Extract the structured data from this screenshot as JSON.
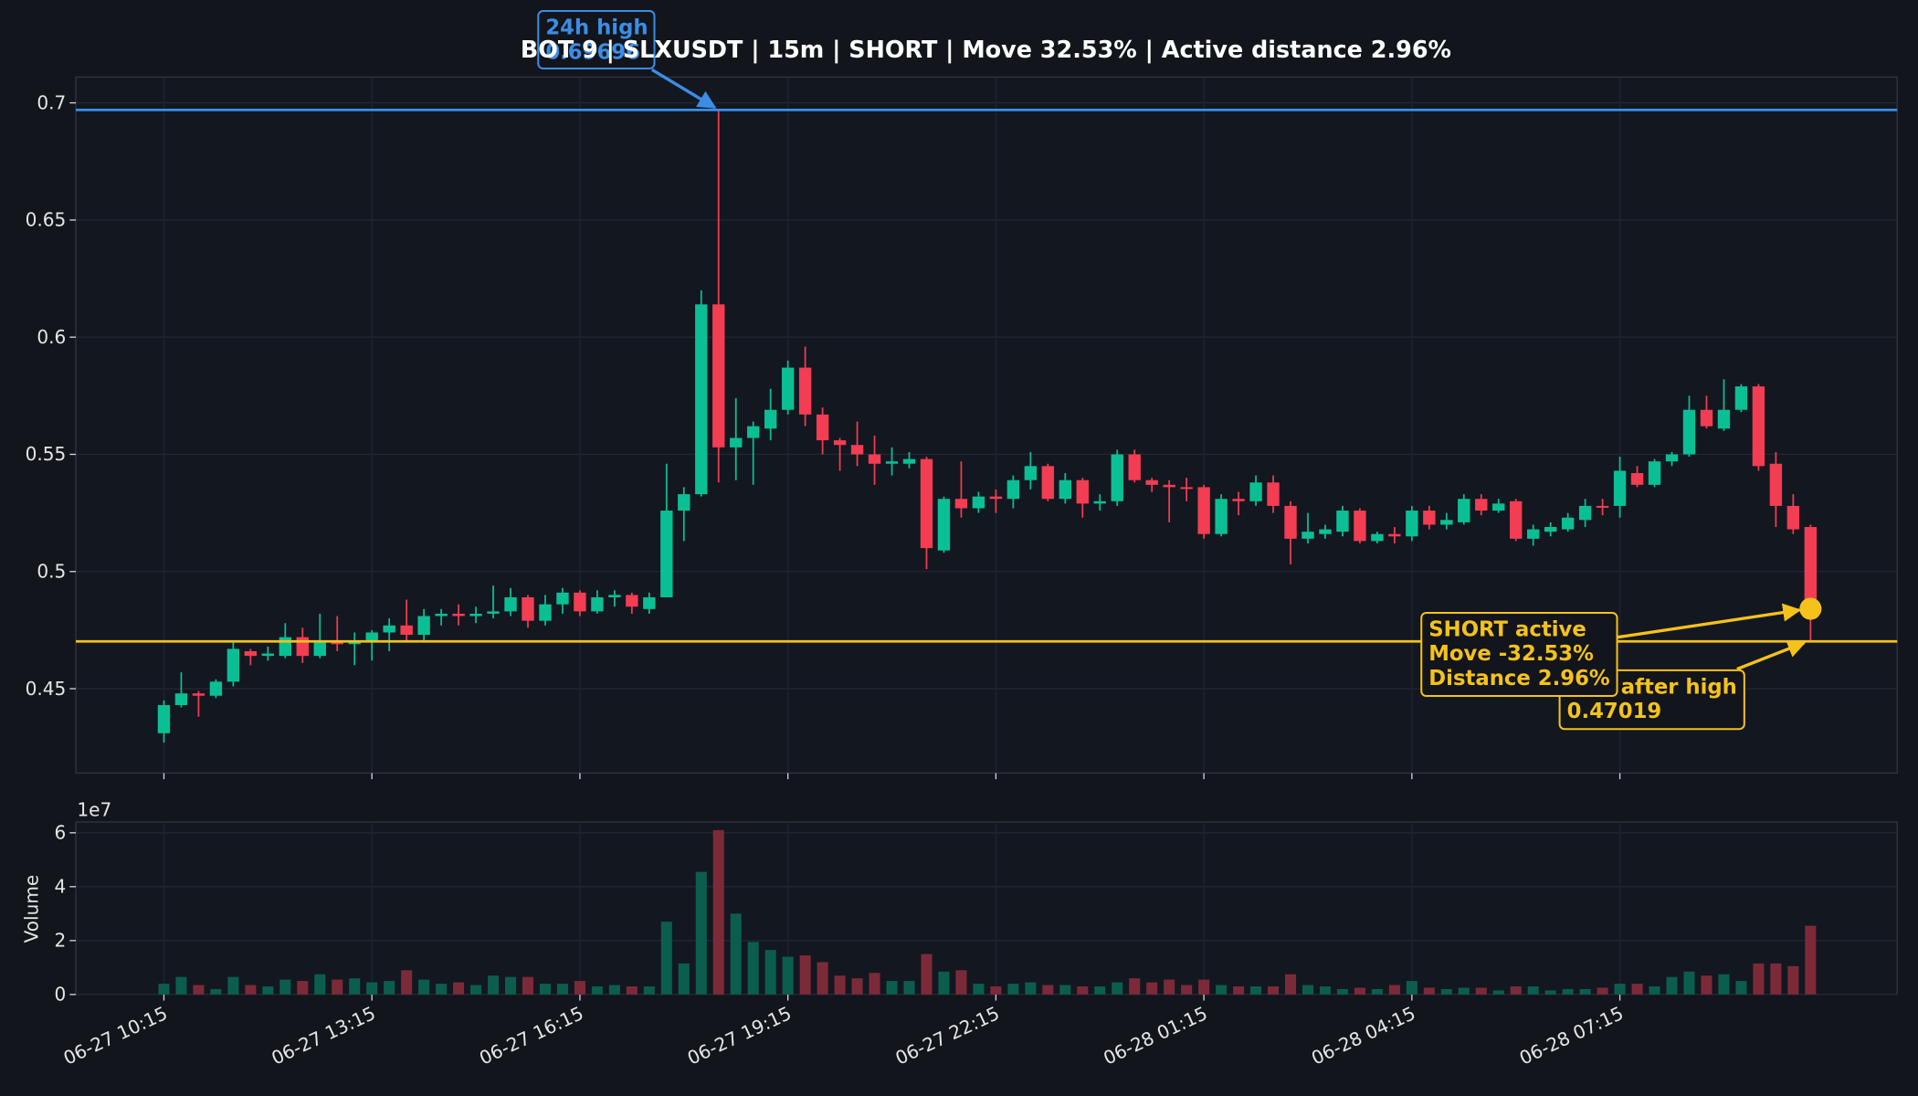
{
  "chart_data": [
    {
      "type": "candlestick",
      "title": "BOT 9 | SLXUSDT | 15m | SHORT | Move 32.53% | Active distance 2.96%",
      "categories": [
        "06-27 10:15",
        null,
        null,
        null,
        null,
        null,
        null,
        null,
        null,
        null,
        null,
        null,
        "06-27 13:15",
        null,
        null,
        null,
        null,
        null,
        null,
        null,
        null,
        null,
        null,
        null,
        "06-27 16:15",
        null,
        null,
        null,
        null,
        null,
        null,
        null,
        null,
        null,
        null,
        null,
        "06-27 19:15",
        null,
        null,
        null,
        null,
        null,
        null,
        null,
        null,
        null,
        null,
        null,
        "06-27 22:15",
        null,
        null,
        null,
        null,
        null,
        null,
        null,
        null,
        null,
        null,
        null,
        "06-28 01:15",
        null,
        null,
        null,
        null,
        null,
        null,
        null,
        null,
        null,
        null,
        null,
        "06-28 04:15",
        null,
        null,
        null,
        null,
        null,
        null,
        null,
        null,
        null,
        null,
        null,
        "06-28 07:15",
        null,
        null,
        null,
        null,
        null,
        null,
        null,
        null,
        null,
        null,
        null
      ],
      "open": [
        0.431,
        0.443,
        0.448,
        0.447,
        0.453,
        0.466,
        0.464,
        0.464,
        0.472,
        0.464,
        0.47,
        0.469,
        0.47,
        0.474,
        0.477,
        0.473,
        0.481,
        0.482,
        0.481,
        0.482,
        0.483,
        0.489,
        0.479,
        0.486,
        0.491,
        0.483,
        0.489,
        0.49,
        0.484,
        0.489,
        0.526,
        0.533,
        0.614,
        0.553,
        0.557,
        0.561,
        0.569,
        0.587,
        0.567,
        0.556,
        0.554,
        0.55,
        0.546,
        0.546,
        0.548,
        0.509,
        0.531,
        0.527,
        0.532,
        0.531,
        0.539,
        0.545,
        0.531,
        0.539,
        0.529,
        0.53,
        0.55,
        0.539,
        0.537,
        0.536,
        0.536,
        0.516,
        0.531,
        0.53,
        0.538,
        0.528,
        0.514,
        0.516,
        0.517,
        0.526,
        0.513,
        0.516,
        0.515,
        0.526,
        0.52,
        0.521,
        0.531,
        0.526,
        0.53,
        0.514,
        0.517,
        0.518,
        0.522,
        0.528,
        0.528,
        0.542,
        0.537,
        0.547,
        0.55,
        0.569,
        0.561,
        0.569,
        0.579,
        0.546,
        0.528,
        0.519
      ],
      "high": [
        0.445,
        0.457,
        0.449,
        0.454,
        0.47,
        0.467,
        0.468,
        0.478,
        0.476,
        0.482,
        0.481,
        0.474,
        0.475,
        0.48,
        0.488,
        0.484,
        0.484,
        0.486,
        0.485,
        0.494,
        0.493,
        0.49,
        0.49,
        0.493,
        0.492,
        0.492,
        0.492,
        0.491,
        0.491,
        0.546,
        0.536,
        0.62,
        0.69696,
        0.574,
        0.564,
        0.578,
        0.59,
        0.596,
        0.57,
        0.557,
        0.564,
        0.558,
        0.553,
        0.551,
        0.549,
        0.532,
        0.547,
        0.534,
        0.535,
        0.541,
        0.551,
        0.546,
        0.542,
        0.54,
        0.533,
        0.552,
        0.552,
        0.54,
        0.539,
        0.54,
        0.537,
        0.533,
        0.534,
        0.541,
        0.541,
        0.53,
        0.525,
        0.52,
        0.528,
        0.527,
        0.517,
        0.519,
        0.528,
        0.528,
        0.525,
        0.533,
        0.533,
        0.531,
        0.531,
        0.52,
        0.521,
        0.525,
        0.531,
        0.531,
        0.549,
        0.545,
        0.548,
        0.551,
        0.575,
        0.575,
        0.582,
        0.58,
        0.58,
        0.551,
        0.533,
        0.52
      ],
      "low": [
        0.427,
        0.442,
        0.438,
        0.446,
        0.451,
        0.46,
        0.462,
        0.463,
        0.461,
        0.463,
        0.466,
        0.46,
        0.462,
        0.466,
        0.47,
        0.47,
        0.477,
        0.477,
        0.478,
        0.48,
        0.481,
        0.476,
        0.477,
        0.482,
        0.481,
        0.482,
        0.485,
        0.482,
        0.482,
        0.489,
        0.513,
        0.532,
        0.538,
        0.539,
        0.537,
        0.556,
        0.567,
        0.562,
        0.55,
        0.543,
        0.545,
        0.537,
        0.541,
        0.544,
        0.501,
        0.508,
        0.523,
        0.525,
        0.525,
        0.527,
        0.535,
        0.53,
        0.529,
        0.523,
        0.526,
        0.528,
        0.538,
        0.534,
        0.521,
        0.53,
        0.514,
        0.515,
        0.524,
        0.528,
        0.525,
        0.503,
        0.512,
        0.514,
        0.515,
        0.512,
        0.512,
        0.512,
        0.513,
        0.518,
        0.518,
        0.52,
        0.524,
        0.525,
        0.513,
        0.511,
        0.515,
        0.517,
        0.519,
        0.524,
        0.523,
        0.536,
        0.536,
        0.545,
        0.549,
        0.561,
        0.56,
        0.568,
        0.543,
        0.519,
        0.516,
        0.47019
      ],
      "close": [
        0.443,
        0.448,
        0.447,
        0.453,
        0.467,
        0.464,
        0.465,
        0.472,
        0.464,
        0.47,
        0.469,
        0.47,
        0.474,
        0.477,
        0.473,
        0.481,
        0.482,
        0.481,
        0.482,
        0.483,
        0.489,
        0.479,
        0.486,
        0.491,
        0.483,
        0.489,
        0.49,
        0.485,
        0.489,
        0.526,
        0.533,
        0.614,
        0.553,
        0.557,
        0.562,
        0.569,
        0.587,
        0.567,
        0.556,
        0.554,
        0.55,
        0.546,
        0.547,
        0.548,
        0.51,
        0.531,
        0.527,
        0.532,
        0.531,
        0.539,
        0.545,
        0.531,
        0.539,
        0.529,
        0.53,
        0.55,
        0.539,
        0.537,
        0.536,
        0.5355,
        0.516,
        0.531,
        0.53,
        0.538,
        0.528,
        0.514,
        0.517,
        0.518,
        0.526,
        0.513,
        0.516,
        0.515,
        0.526,
        0.52,
        0.522,
        0.531,
        0.526,
        0.529,
        0.514,
        0.518,
        0.519,
        0.523,
        0.528,
        0.5278,
        0.543,
        0.537,
        0.547,
        0.55,
        0.569,
        0.562,
        0.569,
        0.579,
        0.545,
        0.528,
        0.518,
        0.4841
      ],
      "up_color": "#0bbf94",
      "down_color": "#f23d52",
      "ylim": [
        0.414,
        0.711
      ],
      "yticks": [
        0.45,
        0.5,
        0.55,
        0.6,
        0.65,
        0.7
      ],
      "grid": true,
      "lines": [
        {
          "label": "24h high",
          "value": 0.69696,
          "color": "#3a8ee6"
        },
        {
          "label": "Low after high",
          "value": 0.47019,
          "color": "#f5c21b"
        }
      ],
      "marker": {
        "value": 0.4841,
        "color": "#f5c21b"
      },
      "status": [
        "SHORT active",
        "Move -32.53%",
        "Distance 2.96%"
      ]
    },
    {
      "type": "bar",
      "ylabel": "Volume",
      "offset_label": "1e7",
      "values": [
        0.4,
        0.65,
        0.35,
        0.2,
        0.65,
        0.35,
        0.3,
        0.55,
        0.5,
        0.75,
        0.55,
        0.6,
        0.45,
        0.5,
        0.9,
        0.55,
        0.4,
        0.45,
        0.35,
        0.7,
        0.65,
        0.65,
        0.4,
        0.4,
        0.5,
        0.3,
        0.35,
        0.3,
        0.3,
        2.7,
        1.15,
        4.55,
        6.1,
        3.0,
        1.95,
        1.65,
        1.4,
        1.45,
        1.2,
        0.7,
        0.6,
        0.8,
        0.5,
        0.5,
        1.5,
        0.85,
        0.9,
        0.4,
        0.3,
        0.4,
        0.45,
        0.35,
        0.35,
        0.3,
        0.3,
        0.45,
        0.6,
        0.45,
        0.55,
        0.35,
        0.55,
        0.35,
        0.3,
        0.3,
        0.3,
        0.75,
        0.35,
        0.3,
        0.2,
        0.25,
        0.2,
        0.35,
        0.5,
        0.25,
        0.2,
        0.25,
        0.25,
        0.15,
        0.3,
        0.3,
        0.15,
        0.2,
        0.2,
        0.25,
        0.4,
        0.4,
        0.3,
        0.65,
        0.85,
        0.7,
        0.75,
        0.5,
        1.15,
        1.15,
        1.05,
        2.55
      ],
      "up_color": "#0b5e4d",
      "down_color": "#7d2a38",
      "ylim": [
        0,
        6.4
      ],
      "yticks": [
        0,
        2,
        4,
        6
      ],
      "grid": true
    }
  ]
}
